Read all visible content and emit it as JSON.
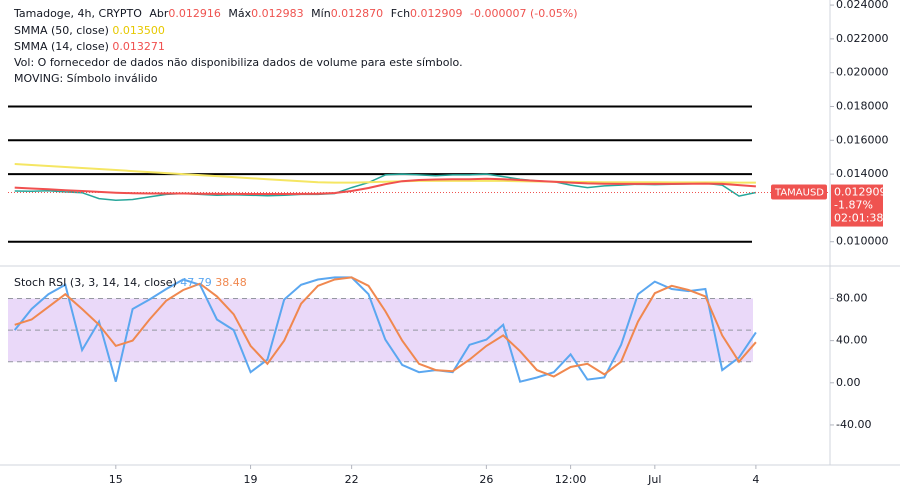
{
  "chart_data": [
    {
      "type": "line",
      "header": {
        "symbol_line": "Tamadoge, 4h, CRYPTO",
        "open_label": "Abr",
        "open": "0.012916",
        "high_label": "Máx",
        "high": "0.012983",
        "low_label": "Mín",
        "low": "0.012870",
        "close_label": "Fch",
        "close": "0.012909",
        "change": "-0.000007 (-0.05%)",
        "vol_note": "Vol: O fornecedor de dados não disponibiliza dados de volume para este símbolo.",
        "moving_note": "MOVING: Símbolo inválido"
      },
      "symbol": "TAMAUSD",
      "change_label": "-1.87%",
      "countdown": "02:01:38",
      "x": [
        12,
        12.5,
        13,
        13.5,
        14,
        14.5,
        15,
        15.5,
        16,
        16.5,
        17,
        17.5,
        18,
        18.5,
        19,
        19.5,
        20,
        20.5,
        21,
        21.5,
        22,
        22.5,
        23,
        23.5,
        24,
        24.5,
        25,
        25.5,
        26,
        26.5,
        27,
        27.5,
        28,
        28.5,
        29,
        29.5,
        30,
        30.5,
        31,
        31.5,
        32,
        32.5,
        33,
        33.5,
        34
      ],
      "xlim": [
        11.8,
        36.2
      ],
      "ylim": [
        0.0088,
        0.0243
      ],
      "yticks": [
        {
          "value": 0.024,
          "label": "0.024000"
        },
        {
          "value": 0.022,
          "label": "0.022000"
        },
        {
          "value": 0.02,
          "label": "0.020000"
        },
        {
          "value": 0.018,
          "label": "0.018000"
        },
        {
          "value": 0.016,
          "label": "0.016000"
        },
        {
          "value": 0.014,
          "label": "0.014000"
        },
        {
          "value": 0.01,
          "label": "0.010000"
        }
      ],
      "levels": [
        0.018,
        0.016,
        0.014,
        0.01
      ],
      "series": [
        {
          "color": "#26a69a",
          "last_label": "0.012909",
          "values": [
            0.013,
            0.01298,
            0.01302,
            0.01295,
            0.0129,
            0.01255,
            0.01245,
            0.0125,
            0.01265,
            0.0128,
            0.01285,
            0.0128,
            0.01275,
            0.01278,
            0.01275,
            0.01272,
            0.01275,
            0.0128,
            0.0128,
            0.01285,
            0.0132,
            0.0135,
            0.01395,
            0.014,
            0.01395,
            0.0139,
            0.01395,
            0.01395,
            0.014,
            0.01385,
            0.0137,
            0.0136,
            0.01355,
            0.01335,
            0.0132,
            0.0133,
            0.01335,
            0.0134,
            0.01338,
            0.0134,
            0.01342,
            0.01345,
            0.01335,
            0.0127,
            0.012909
          ]
        },
        {
          "name": "SMMA (50, close)",
          "color": "#f5e663",
          "last_label": "0.013500",
          "values": [
            0.0146,
            0.01454,
            0.01448,
            0.01442,
            0.01436,
            0.0143,
            0.01424,
            0.01418,
            0.01412,
            0.01406,
            0.014,
            0.01394,
            0.01388,
            0.01382,
            0.01376,
            0.0137,
            0.01364,
            0.01358,
            0.01352,
            0.0135,
            0.0135,
            0.01352,
            0.01355,
            0.01358,
            0.0136,
            0.0136,
            0.0136,
            0.0136,
            0.0136,
            0.0136,
            0.01358,
            0.01356,
            0.01355,
            0.01354,
            0.01353,
            0.01352,
            0.01352,
            0.01352,
            0.01352,
            0.01351,
            0.01351,
            0.01351,
            0.01351,
            0.0135,
            0.0135
          ]
        },
        {
          "name": "SMMA (14, close)",
          "color": "#f0504f",
          "last_label": "0.013271",
          "values": [
            0.0132,
            0.01315,
            0.0131,
            0.01305,
            0.013,
            0.01295,
            0.0129,
            0.01287,
            0.01285,
            0.01285,
            0.01285,
            0.01284,
            0.01283,
            0.01283,
            0.01282,
            0.01282,
            0.01282,
            0.01283,
            0.01284,
            0.01288,
            0.013,
            0.01318,
            0.0134,
            0.01358,
            0.01365,
            0.01368,
            0.0137,
            0.0137,
            0.01372,
            0.0137,
            0.01365,
            0.0136,
            0.01355,
            0.0135,
            0.01345,
            0.01343,
            0.01342,
            0.01342,
            0.01342,
            0.01342,
            0.01343,
            0.01344,
            0.01342,
            0.01335,
            0.013271
          ]
        }
      ]
    },
    {
      "type": "line",
      "title": "Stoch RSI (3, 3, 14, 14, close)",
      "x": [
        12,
        12.5,
        13,
        13.5,
        14,
        14.5,
        15,
        15.5,
        16,
        16.5,
        17,
        17.5,
        18,
        18.5,
        19,
        19.5,
        20,
        20.5,
        21,
        21.5,
        22,
        22.5,
        23,
        23.5,
        24,
        24.5,
        25,
        25.5,
        26,
        26.5,
        27,
        27.5,
        28,
        28.5,
        29,
        29.5,
        30,
        30.5,
        31,
        31.5,
        32,
        32.5,
        33,
        33.5,
        34
      ],
      "xlim": [
        11.8,
        36.2
      ],
      "xticks": [
        15,
        19,
        22,
        26,
        {
          "value": 28.5,
          "label": "12:00"
        },
        {
          "value": 31,
          "label": "Jul"
        },
        {
          "value": 34,
          "label": "4"
        }
      ],
      "ylim": [
        -78,
        107
      ],
      "yticks": [
        {
          "value": 80,
          "label": "80.00"
        },
        {
          "value": 40,
          "label": "40.00"
        },
        {
          "value": 0,
          "label": "0.00"
        },
        {
          "value": -40,
          "label": "-40.00"
        }
      ],
      "band": [
        20,
        80
      ],
      "band_color": "#e1c9f7",
      "hlines": [
        80,
        50,
        20
      ],
      "series": [
        {
          "color": "#5ba7f0",
          "last_label": "47.79",
          "values": [
            50,
            70,
            84,
            93,
            31,
            58,
            1,
            70,
            79,
            89,
            98,
            93,
            60,
            50,
            10,
            22,
            79,
            93,
            98,
            100,
            100,
            84,
            41,
            17,
            10,
            12,
            10,
            36,
            41,
            55,
            1,
            5,
            10,
            27,
            3,
            5,
            36,
            84,
            96,
            89,
            87,
            89,
            12,
            24,
            47.79
          ]
        },
        {
          "color": "#f0884f",
          "last_label": "38.48",
          "values": [
            55,
            60,
            72,
            84,
            70,
            55,
            35,
            40,
            60,
            78,
            88,
            94,
            82,
            65,
            35,
            18,
            40,
            75,
            92,
            98,
            100,
            92,
            68,
            40,
            18,
            12,
            11,
            22,
            35,
            45,
            30,
            12,
            6,
            15,
            18,
            8,
            20,
            58,
            85,
            92,
            88,
            82,
            45,
            20,
            38.48
          ]
        }
      ]
    }
  ]
}
